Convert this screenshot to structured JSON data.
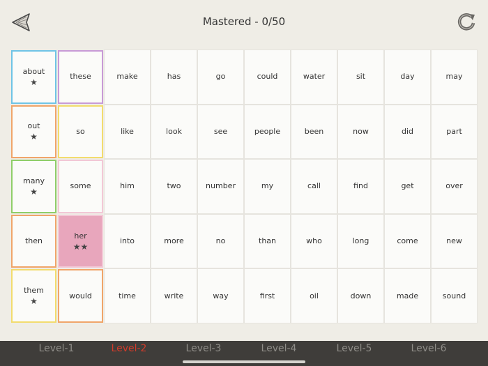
{
  "header": {
    "title": "Mastered - 0/50",
    "back_icon": "back-arrow-icon",
    "reset_icon": "refresh-icon"
  },
  "colors": {
    "blue": "#6fc4e6",
    "purple": "#c89ad6",
    "orange": "#f0a56a",
    "yellow": "#f2dc6e",
    "green": "#8fce6a",
    "pink": "#f2c8d6",
    "pink_fill": "#e8a6bc",
    "active_level": "#d33b2a",
    "inactive_level": "#8f8d88"
  },
  "words": [
    {
      "word": "about",
      "stars": "★",
      "frame": "blue"
    },
    {
      "word": "these",
      "stars": "",
      "frame": "purple"
    },
    {
      "word": "make",
      "stars": ""
    },
    {
      "word": "has",
      "stars": ""
    },
    {
      "word": "go",
      "stars": ""
    },
    {
      "word": "could",
      "stars": ""
    },
    {
      "word": "water",
      "stars": ""
    },
    {
      "word": "sit",
      "stars": ""
    },
    {
      "word": "day",
      "stars": ""
    },
    {
      "word": "may",
      "stars": ""
    },
    {
      "word": "out",
      "stars": "★",
      "frame": "orange"
    },
    {
      "word": "so",
      "stars": "",
      "frame": "yellow"
    },
    {
      "word": "like",
      "stars": ""
    },
    {
      "word": "look",
      "stars": ""
    },
    {
      "word": "see",
      "stars": ""
    },
    {
      "word": "people",
      "stars": ""
    },
    {
      "word": "been",
      "stars": ""
    },
    {
      "word": "now",
      "stars": ""
    },
    {
      "word": "did",
      "stars": ""
    },
    {
      "word": "part",
      "stars": ""
    },
    {
      "word": "many",
      "stars": "★",
      "frame": "green"
    },
    {
      "word": "some",
      "stars": "",
      "frame": "pink"
    },
    {
      "word": "him",
      "stars": ""
    },
    {
      "word": "two",
      "stars": ""
    },
    {
      "word": "number",
      "stars": ""
    },
    {
      "word": "my",
      "stars": ""
    },
    {
      "word": "call",
      "stars": ""
    },
    {
      "word": "find",
      "stars": ""
    },
    {
      "word": "get",
      "stars": ""
    },
    {
      "word": "over",
      "stars": ""
    },
    {
      "word": "then",
      "stars": "",
      "frame": "orange"
    },
    {
      "word": "her",
      "stars": "★★",
      "frame": "pink",
      "filled": true
    },
    {
      "word": "into",
      "stars": ""
    },
    {
      "word": "more",
      "stars": ""
    },
    {
      "word": "no",
      "stars": ""
    },
    {
      "word": "than",
      "stars": ""
    },
    {
      "word": "who",
      "stars": ""
    },
    {
      "word": "long",
      "stars": ""
    },
    {
      "word": "come",
      "stars": ""
    },
    {
      "word": "new",
      "stars": ""
    },
    {
      "word": "them",
      "stars": "★",
      "frame": "yellow"
    },
    {
      "word": "would",
      "stars": "",
      "frame": "orange"
    },
    {
      "word": "time",
      "stars": ""
    },
    {
      "word": "write",
      "stars": ""
    },
    {
      "word": "way",
      "stars": ""
    },
    {
      "word": "first",
      "stars": ""
    },
    {
      "word": "oil",
      "stars": ""
    },
    {
      "word": "down",
      "stars": ""
    },
    {
      "word": "made",
      "stars": ""
    },
    {
      "word": "sound",
      "stars": ""
    }
  ],
  "levels": [
    {
      "label": "Level-1",
      "active": false
    },
    {
      "label": "Level-2",
      "active": true
    },
    {
      "label": "Level-3",
      "active": false
    },
    {
      "label": "Level-4",
      "active": false
    },
    {
      "label": "Level-5",
      "active": false
    },
    {
      "label": "Level-6",
      "active": false
    }
  ]
}
